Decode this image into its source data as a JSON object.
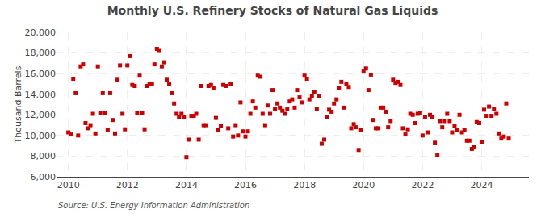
{
  "chart_data": {
    "type": "scatter",
    "title": "Monthly U.S. Refinery Stocks of Natural Gas Liquids",
    "ylabel": "Thousand Barrels",
    "annotations": [
      "Source: U.S. Energy Information Administration"
    ],
    "color": "#CC0000",
    "marker": "square",
    "grid": true,
    "xlim": [
      2009.6,
      2025.6
    ],
    "xticks": [
      2010,
      2012,
      2014,
      2016,
      2018,
      2020,
      2022,
      2024
    ],
    "ylim": [
      6000,
      20000
    ],
    "yticks": [
      {
        "value": 6000,
        "label": "6,000"
      },
      {
        "value": 8000,
        "label": "8,000"
      },
      {
        "value": 10000,
        "label": "10,000"
      },
      {
        "value": 12000,
        "label": "12,000"
      },
      {
        "value": 14000,
        "label": "14,000"
      },
      {
        "value": 16000,
        "label": "16,000"
      },
      {
        "value": 18000,
        "label": "18,000"
      },
      {
        "value": 20000,
        "label": "20,000"
      }
    ],
    "x": [
      2010.0,
      2010.083,
      2010.167,
      2010.25,
      2010.333,
      2010.417,
      2010.5,
      2010.583,
      2010.667,
      2010.75,
      2010.833,
      2010.917,
      2011.0,
      2011.083,
      2011.167,
      2011.25,
      2011.333,
      2011.417,
      2011.5,
      2011.583,
      2011.667,
      2011.75,
      2011.833,
      2011.917,
      2012.0,
      2012.083,
      2012.167,
      2012.25,
      2012.333,
      2012.417,
      2012.5,
      2012.583,
      2012.667,
      2012.75,
      2012.833,
      2012.917,
      2013.0,
      2013.083,
      2013.167,
      2013.25,
      2013.333,
      2013.417,
      2013.5,
      2013.583,
      2013.667,
      2013.75,
      2013.833,
      2013.917,
      2014.0,
      2014.083,
      2014.167,
      2014.25,
      2014.333,
      2014.417,
      2014.5,
      2014.583,
      2014.667,
      2014.75,
      2014.833,
      2014.917,
      2015.0,
      2015.083,
      2015.167,
      2015.25,
      2015.333,
      2015.417,
      2015.5,
      2015.583,
      2015.667,
      2015.75,
      2015.833,
      2015.917,
      2016.0,
      2016.083,
      2016.167,
      2016.25,
      2016.333,
      2016.417,
      2016.5,
      2016.583,
      2016.667,
      2016.75,
      2016.833,
      2016.917,
      2017.0,
      2017.083,
      2017.167,
      2017.25,
      2017.333,
      2017.417,
      2017.5,
      2017.583,
      2017.667,
      2017.75,
      2017.833,
      2017.917,
      2018.0,
      2018.083,
      2018.167,
      2018.25,
      2018.333,
      2018.417,
      2018.5,
      2018.583,
      2018.667,
      2018.75,
      2018.833,
      2018.917,
      2019.0,
      2019.083,
      2019.167,
      2019.25,
      2019.333,
      2019.417,
      2019.5,
      2019.583,
      2019.667,
      2019.75,
      2019.833,
      2019.917,
      2020.0,
      2020.083,
      2020.167,
      2020.25,
      2020.333,
      2020.417,
      2020.5,
      2020.583,
      2020.667,
      2020.75,
      2020.833,
      2020.917,
      2021.0,
      2021.083,
      2021.167,
      2021.25,
      2021.333,
      2021.417,
      2021.5,
      2021.583,
      2021.667,
      2021.75,
      2021.833,
      2021.917,
      2022.0,
      2022.083,
      2022.167,
      2022.25,
      2022.333,
      2022.417,
      2022.5,
      2022.583,
      2022.667,
      2022.75,
      2022.833,
      2022.917,
      2023.0,
      2023.083,
      2023.167,
      2023.25,
      2023.333,
      2023.417,
      2023.5,
      2023.583,
      2023.667,
      2023.75,
      2023.833,
      2023.917,
      2024.0,
      2024.083,
      2024.167,
      2024.25,
      2024.333,
      2024.417,
      2024.5,
      2024.583,
      2024.667,
      2024.75,
      2024.833,
      2024.917
    ],
    "values": [
      10300,
      10100,
      15500,
      14100,
      10000,
      16700,
      16900,
      11200,
      10700,
      11000,
      12100,
      10200,
      16700,
      12200,
      14100,
      12200,
      10500,
      14100,
      11500,
      10200,
      15400,
      16800,
      12100,
      10600,
      16800,
      17700,
      14900,
      14800,
      12200,
      15800,
      12200,
      10600,
      14800,
      15000,
      15000,
      16900,
      18400,
      18200,
      16700,
      17100,
      15400,
      15000,
      14100,
      13100,
      12100,
      11800,
      12100,
      11800,
      7900,
      9600,
      11900,
      11900,
      12100,
      9600,
      14800,
      11000,
      11000,
      14800,
      14900,
      14600,
      11700,
      10500,
      10900,
      14900,
      14800,
      10700,
      15000,
      9900,
      11000,
      10000,
      13200,
      10400,
      9900,
      10400,
      12100,
      13300,
      12700,
      15800,
      15700,
      12100,
      11000,
      12900,
      12100,
      14400,
      12600,
      13100,
      12700,
      12400,
      12100,
      12600,
      13300,
      13500,
      12700,
      14400,
      13700,
      13200,
      15800,
      15500,
      13500,
      13800,
      14200,
      12600,
      13800,
      9200,
      9600,
      11800,
      12500,
      12300,
      13100,
      13500,
      14600,
      15200,
      12700,
      15000,
      14700,
      10700,
      11100,
      10800,
      8600,
      10500,
      16200,
      16500,
      14400,
      15900,
      11500,
      10700,
      10700,
      12700,
      12700,
      12300,
      10800,
      11400,
      15400,
      15100,
      15200,
      14900,
      10700,
      10100,
      10600,
      12100,
      12000,
      11200,
      12100,
      12200,
      10000,
      11800,
      10300,
      12000,
      11800,
      9300,
      8100,
      11400,
      10800,
      11400,
      12100,
      11400,
      10300,
      10900,
      10500,
      12000,
      10300,
      10500,
      9500,
      9500,
      8700,
      8900,
      11300,
      11200,
      9400,
      12500,
      11900,
      12800,
      11900,
      12600,
      12100,
      10200,
      9700,
      9900,
      13100,
      9700
    ]
  }
}
